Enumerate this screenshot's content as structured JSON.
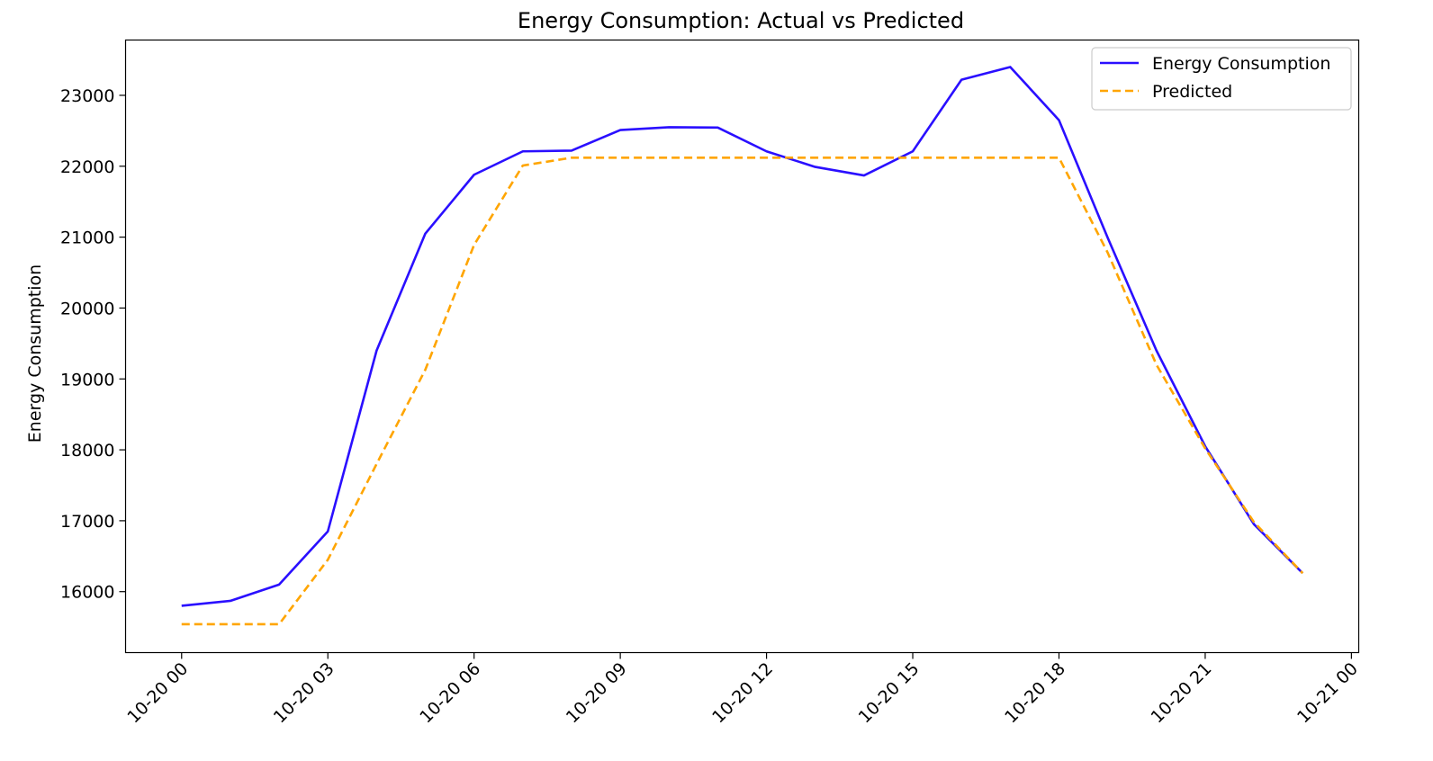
{
  "chart_data": {
    "type": "line",
    "title": "Energy Consumption: Actual vs Predicted",
    "xlabel": "",
    "ylabel": "Energy Consumption",
    "x": [
      "10-20 00",
      "10-20 01",
      "10-20 02",
      "10-20 03",
      "10-20 04",
      "10-20 05",
      "10-20 06",
      "10-20 07",
      "10-20 08",
      "10-20 09",
      "10-20 10",
      "10-20 11",
      "10-20 12",
      "10-20 13",
      "10-20 14",
      "10-20 15",
      "10-20 16",
      "10-20 17",
      "10-20 18",
      "10-20 19",
      "10-20 20",
      "10-20 21",
      "10-20 22",
      "10-20 23"
    ],
    "x_hours": [
      0,
      1,
      2,
      3,
      4,
      5,
      6,
      7,
      8,
      9,
      10,
      11,
      12,
      13,
      14,
      15,
      16,
      17,
      18,
      19,
      20,
      21,
      22,
      23
    ],
    "x_ticks": {
      "hours": [
        0,
        3,
        6,
        9,
        12,
        15,
        18,
        21,
        24
      ],
      "labels": [
        "10-20 00",
        "10-20 03",
        "10-20 06",
        "10-20 09",
        "10-20 12",
        "10-20 15",
        "10-20 18",
        "10-20 21",
        "10-21 00"
      ]
    },
    "xlim": [
      -1.15,
      24.15
    ],
    "ylim": [
      15140,
      23780
    ],
    "y_ticks": [
      16000,
      17000,
      18000,
      19000,
      20000,
      21000,
      22000,
      23000
    ],
    "grid": false,
    "legend": "top-right",
    "series": [
      {
        "name": "Energy Consumption",
        "color": "#2a0fff",
        "style": "solid",
        "values": [
          15800,
          15870,
          16100,
          16850,
          19400,
          21050,
          21880,
          22210,
          22220,
          22510,
          22550,
          22545,
          22210,
          21990,
          21870,
          22210,
          23220,
          23400,
          22650,
          20990,
          19400,
          18050,
          16950,
          16260
        ]
      },
      {
        "name": "Predicted",
        "color": "#ffa500",
        "style": "dashed",
        "values": [
          15540,
          15540,
          15540,
          16450,
          17800,
          19130,
          20890,
          22010,
          22120,
          22120,
          22120,
          22120,
          22120,
          22120,
          22120,
          22120,
          22120,
          22120,
          22120,
          20780,
          19200,
          18020,
          16980,
          16260
        ]
      }
    ]
  }
}
